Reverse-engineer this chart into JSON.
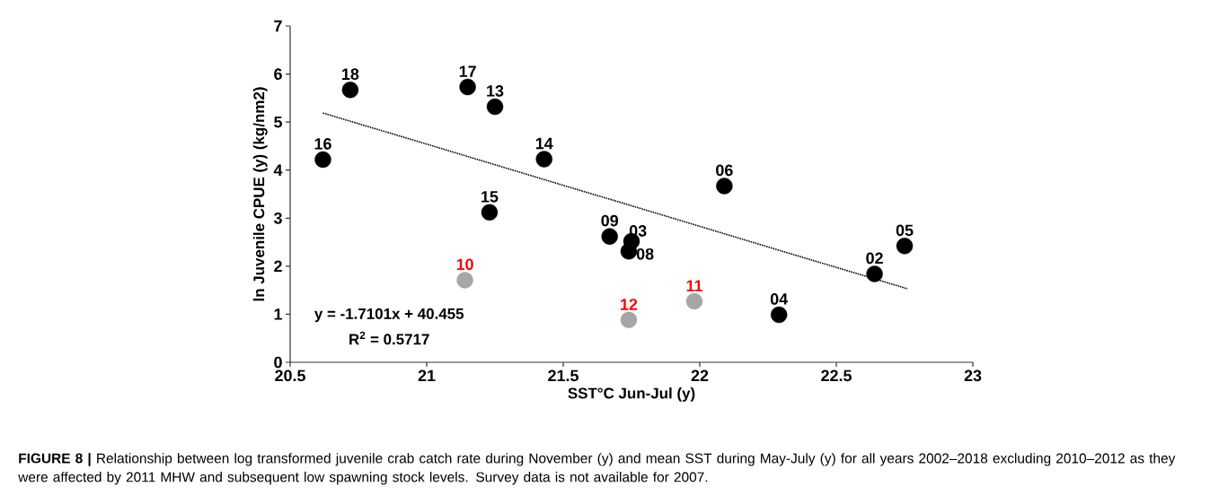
{
  "chart_data": {
    "type": "scatter",
    "xlabel": "SST°C Jun-Jul (y)",
    "ylabel": "ln Juvenile CPUE (y) (kg/nm2)",
    "xlim": [
      20.5,
      23
    ],
    "xticks": [
      20.5,
      21,
      21.5,
      22,
      22.5,
      23
    ],
    "ylim": [
      0,
      7
    ],
    "yticks": [
      0,
      1,
      2,
      3,
      4,
      5,
      6,
      7
    ],
    "grid": false,
    "series": [
      {
        "color": "#000000",
        "marker": "circle",
        "x": [
          22.64,
          21.75,
          22.29,
          22.75,
          22.09,
          21.74,
          21.67,
          21.25,
          21.43,
          21.23,
          20.62,
          21.15,
          20.72
        ],
        "values": [
          1.84,
          2.52,
          0.99,
          2.42,
          3.67,
          2.31,
          2.62,
          5.32,
          4.23,
          3.12,
          4.22,
          5.73,
          5.67
        ]
      },
      {
        "color": "#a6a6a6",
        "marker": "circle",
        "x": [
          21.14,
          21.98,
          21.74
        ],
        "values": [
          1.71,
          1.27,
          0.88
        ]
      },
      {
        "type": "line",
        "color": "#000000",
        "line_style": "dotted",
        "marker": "none",
        "x": [
          20.62,
          22.76
        ],
        "values": [
          5.19,
          1.53
        ]
      }
    ],
    "annotations": [
      "y = -1.7101x + 40.455",
      "R$^{2}$ = 0.5717",
      "**FIGURE 8 |** Relationship between log transformed juvenile crab catch rate during November (y) and mean SST during May-July (y) for all years 2002–2018 excluding 2010–2012 as they were affected by 2011 MHW and subsequent low spawning stock levels. Survey data is not available for 2007.",
      {
        "text": "02",
        "x": 22.64,
        "y": 1.84
      },
      {
        "text": "03",
        "x": 21.75,
        "y": 2.52
      },
      {
        "text": "04",
        "x": 22.29,
        "y": 0.99
      },
      {
        "text": "05",
        "x": 22.75,
        "y": 2.42
      },
      {
        "text": "06",
        "x": 22.09,
        "y": 3.67
      },
      {
        "text": "08",
        "x": 21.74,
        "y": 2.31
      },
      {
        "text": "09",
        "x": 21.67,
        "y": 2.62
      },
      {
        "text": "13",
        "x": 21.25,
        "y": 5.32
      },
      {
        "text": "14",
        "x": 21.43,
        "y": 4.23
      },
      {
        "text": "15",
        "x": 21.23,
        "y": 3.12
      },
      {
        "text": "16",
        "x": 20.62,
        "y": 4.22
      },
      {
        "text": "17",
        "x": 21.15,
        "y": 5.73
      },
      {
        "text": "18",
        "x": 20.72,
        "y": 5.67
      },
      {
        "text": "10",
        "x": 21.14,
        "y": 1.71
      },
      {
        "text": "11",
        "x": 21.98,
        "y": 1.27
      },
      {
        "text": "12",
        "x": 21.74,
        "y": 0.88
      }
    ]
  }
}
